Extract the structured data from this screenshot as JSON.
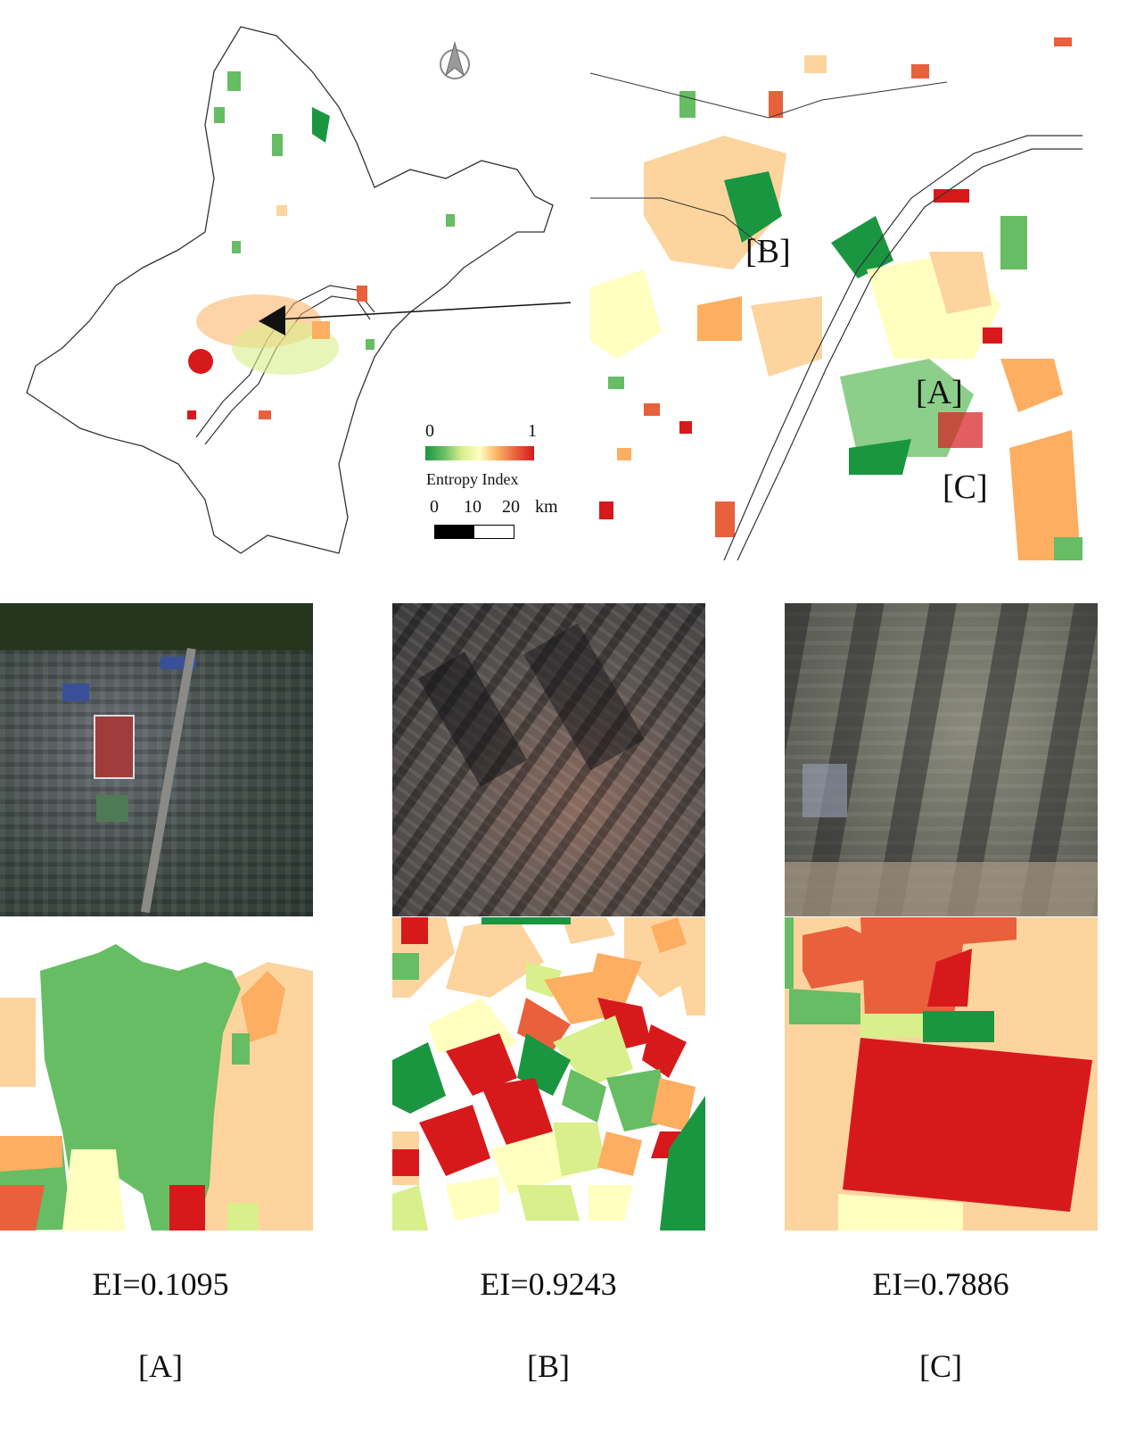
{
  "legend": {
    "min_label": "0",
    "max_label": "1",
    "title": "Entropy Index",
    "scale_labels": [
      "0",
      "10",
      "20"
    ],
    "scale_unit": "km"
  },
  "inset_labels": [
    "[B]",
    "[A]",
    "[C]"
  ],
  "panels": [
    {
      "id": "A",
      "label": "[A]",
      "ei_text": "EI=0.1095"
    },
    {
      "id": "B",
      "label": "[B]",
      "ei_text": "EI=0.9243"
    },
    {
      "id": "C",
      "label": "[C]",
      "ei_text": "EI=0.7886"
    }
  ],
  "colors": {
    "dark_green": "#1a9641",
    "green": "#66bd63",
    "light_green": "#d9ef8b",
    "pale_yellow": "#ffffbf",
    "light_orange": "#fdd49e",
    "orange": "#fdae61",
    "red_orange": "#e8603c",
    "red": "#d7191c"
  },
  "icons": {
    "north_arrow": "north-arrow-icon"
  }
}
